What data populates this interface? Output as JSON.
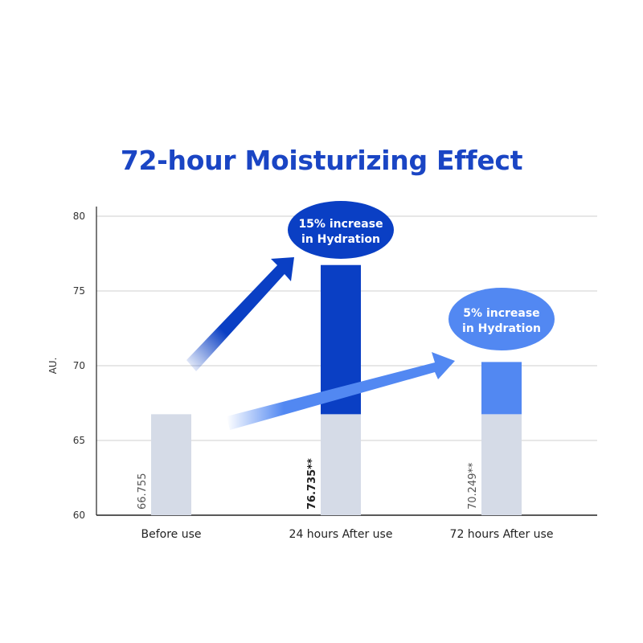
{
  "chart_data": {
    "type": "bar",
    "title": "72-hour Moisturizing Effect",
    "xlabel": "",
    "ylabel": "AU.",
    "ylim": [
      60,
      80
    ],
    "yticks": [
      60,
      65,
      70,
      75,
      80
    ],
    "grid": true,
    "categories": [
      "Before use",
      "24 hours After use",
      "72 hours After use"
    ],
    "values": [
      66.755,
      76.735,
      70.249
    ],
    "value_labels": [
      "66.755",
      "76.735**",
      "70.249**"
    ],
    "baseline_value": 66.755,
    "annotations": [
      {
        "line1": "15% increase",
        "line2": "in Hydration",
        "target": "24 hours After use"
      },
      {
        "line1": "5% increase",
        "line2": "in Hydration",
        "target": "72 hours After use"
      }
    ],
    "colors": {
      "baseline": "#d5dbe7",
      "increase_24h": "#0a3fc4",
      "increase_72h": "#5288f2",
      "title": "#1a45c4",
      "grid": "#cfcfcf"
    }
  }
}
